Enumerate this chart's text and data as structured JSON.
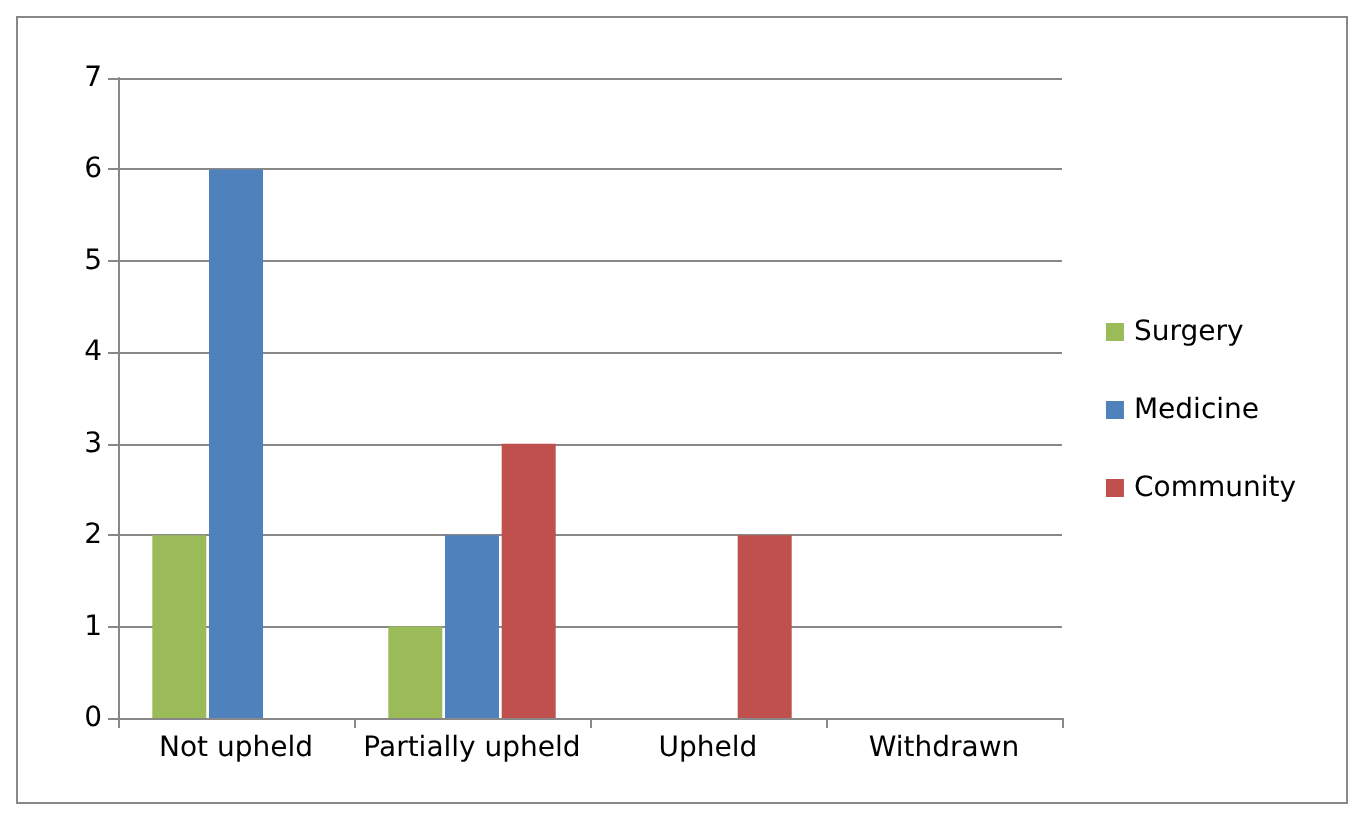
{
  "chart_data": {
    "type": "bar",
    "categories": [
      "Not upheld",
      "Partially upheld",
      "Upheld",
      "Withdrawn"
    ],
    "series": [
      {
        "name": "Surgery",
        "color": "#9bbb59",
        "values": [
          2,
          1,
          0,
          0
        ]
      },
      {
        "name": "Medicine",
        "color": "#4f81bd",
        "values": [
          6,
          2,
          0,
          0
        ]
      },
      {
        "name": "Community",
        "color": "#c0504d",
        "values": [
          0,
          3,
          2,
          0
        ]
      }
    ],
    "ylim": [
      0,
      7
    ],
    "yticks": [
      0,
      1,
      2,
      3,
      4,
      5,
      6,
      7
    ],
    "grid": "y",
    "legend": "right"
  }
}
